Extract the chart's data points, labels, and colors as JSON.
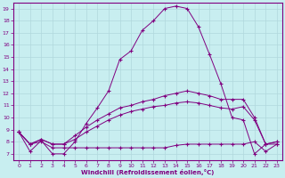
{
  "xlabel": "Windchill (Refroidissement éolien,°C)",
  "bg_color": "#c8eef0",
  "line_color": "#800080",
  "grid_color": "#b0d8dc",
  "xlim": [
    -0.5,
    23.5
  ],
  "ylim": [
    6.5,
    19.5
  ],
  "xticks": [
    0,
    1,
    2,
    3,
    4,
    5,
    6,
    7,
    8,
    9,
    10,
    11,
    12,
    13,
    14,
    15,
    16,
    17,
    18,
    19,
    20,
    21,
    22,
    23
  ],
  "yticks": [
    7,
    8,
    9,
    10,
    11,
    12,
    13,
    14,
    15,
    16,
    17,
    18,
    19
  ],
  "lines": [
    {
      "x": [
        0,
        1,
        2,
        3,
        4,
        5,
        6,
        7,
        8,
        9,
        10,
        11,
        12,
        13,
        14,
        15,
        16,
        17,
        18,
        19,
        20,
        21,
        22,
        23
      ],
      "y": [
        8.8,
        7.2,
        8.1,
        7.0,
        7.0,
        8.0,
        9.5,
        10.8,
        12.2,
        14.8,
        15.5,
        17.2,
        18.0,
        19.0,
        19.2,
        19.0,
        17.5,
        15.2,
        12.8,
        10.0,
        9.8,
        7.0,
        7.8,
        8.0
      ]
    },
    {
      "x": [
        0,
        1,
        2,
        3,
        4,
        5,
        6,
        7,
        8,
        9,
        10,
        11,
        12,
        13,
        14,
        15,
        16,
        17,
        18,
        19,
        20,
        21,
        22,
        23
      ],
      "y": [
        8.8,
        7.8,
        8.2,
        7.8,
        7.8,
        8.5,
        9.2,
        9.8,
        10.3,
        10.8,
        11.0,
        11.3,
        11.5,
        11.8,
        12.0,
        12.2,
        12.0,
        11.8,
        11.5,
        11.5,
        11.5,
        10.0,
        7.8,
        8.0
      ]
    },
    {
      "x": [
        0,
        1,
        2,
        3,
        4,
        5,
        6,
        7,
        8,
        9,
        10,
        11,
        12,
        13,
        14,
        15,
        16,
        17,
        18,
        19,
        20,
        21,
        22,
        23
      ],
      "y": [
        8.8,
        7.8,
        8.2,
        7.8,
        7.8,
        8.2,
        8.8,
        9.3,
        9.8,
        10.2,
        10.5,
        10.7,
        10.9,
        11.0,
        11.2,
        11.3,
        11.2,
        11.0,
        10.8,
        10.7,
        10.9,
        9.8,
        7.8,
        7.8
      ]
    },
    {
      "x": [
        0,
        1,
        2,
        3,
        4,
        5,
        6,
        7,
        8,
        9,
        10,
        11,
        12,
        13,
        14,
        15,
        16,
        17,
        18,
        19,
        20,
        21,
        22,
        23
      ],
      "y": [
        8.8,
        7.8,
        8.0,
        7.5,
        7.5,
        7.5,
        7.5,
        7.5,
        7.5,
        7.5,
        7.5,
        7.5,
        7.5,
        7.5,
        7.7,
        7.8,
        7.8,
        7.8,
        7.8,
        7.8,
        7.8,
        8.0,
        7.2,
        7.8
      ]
    }
  ]
}
